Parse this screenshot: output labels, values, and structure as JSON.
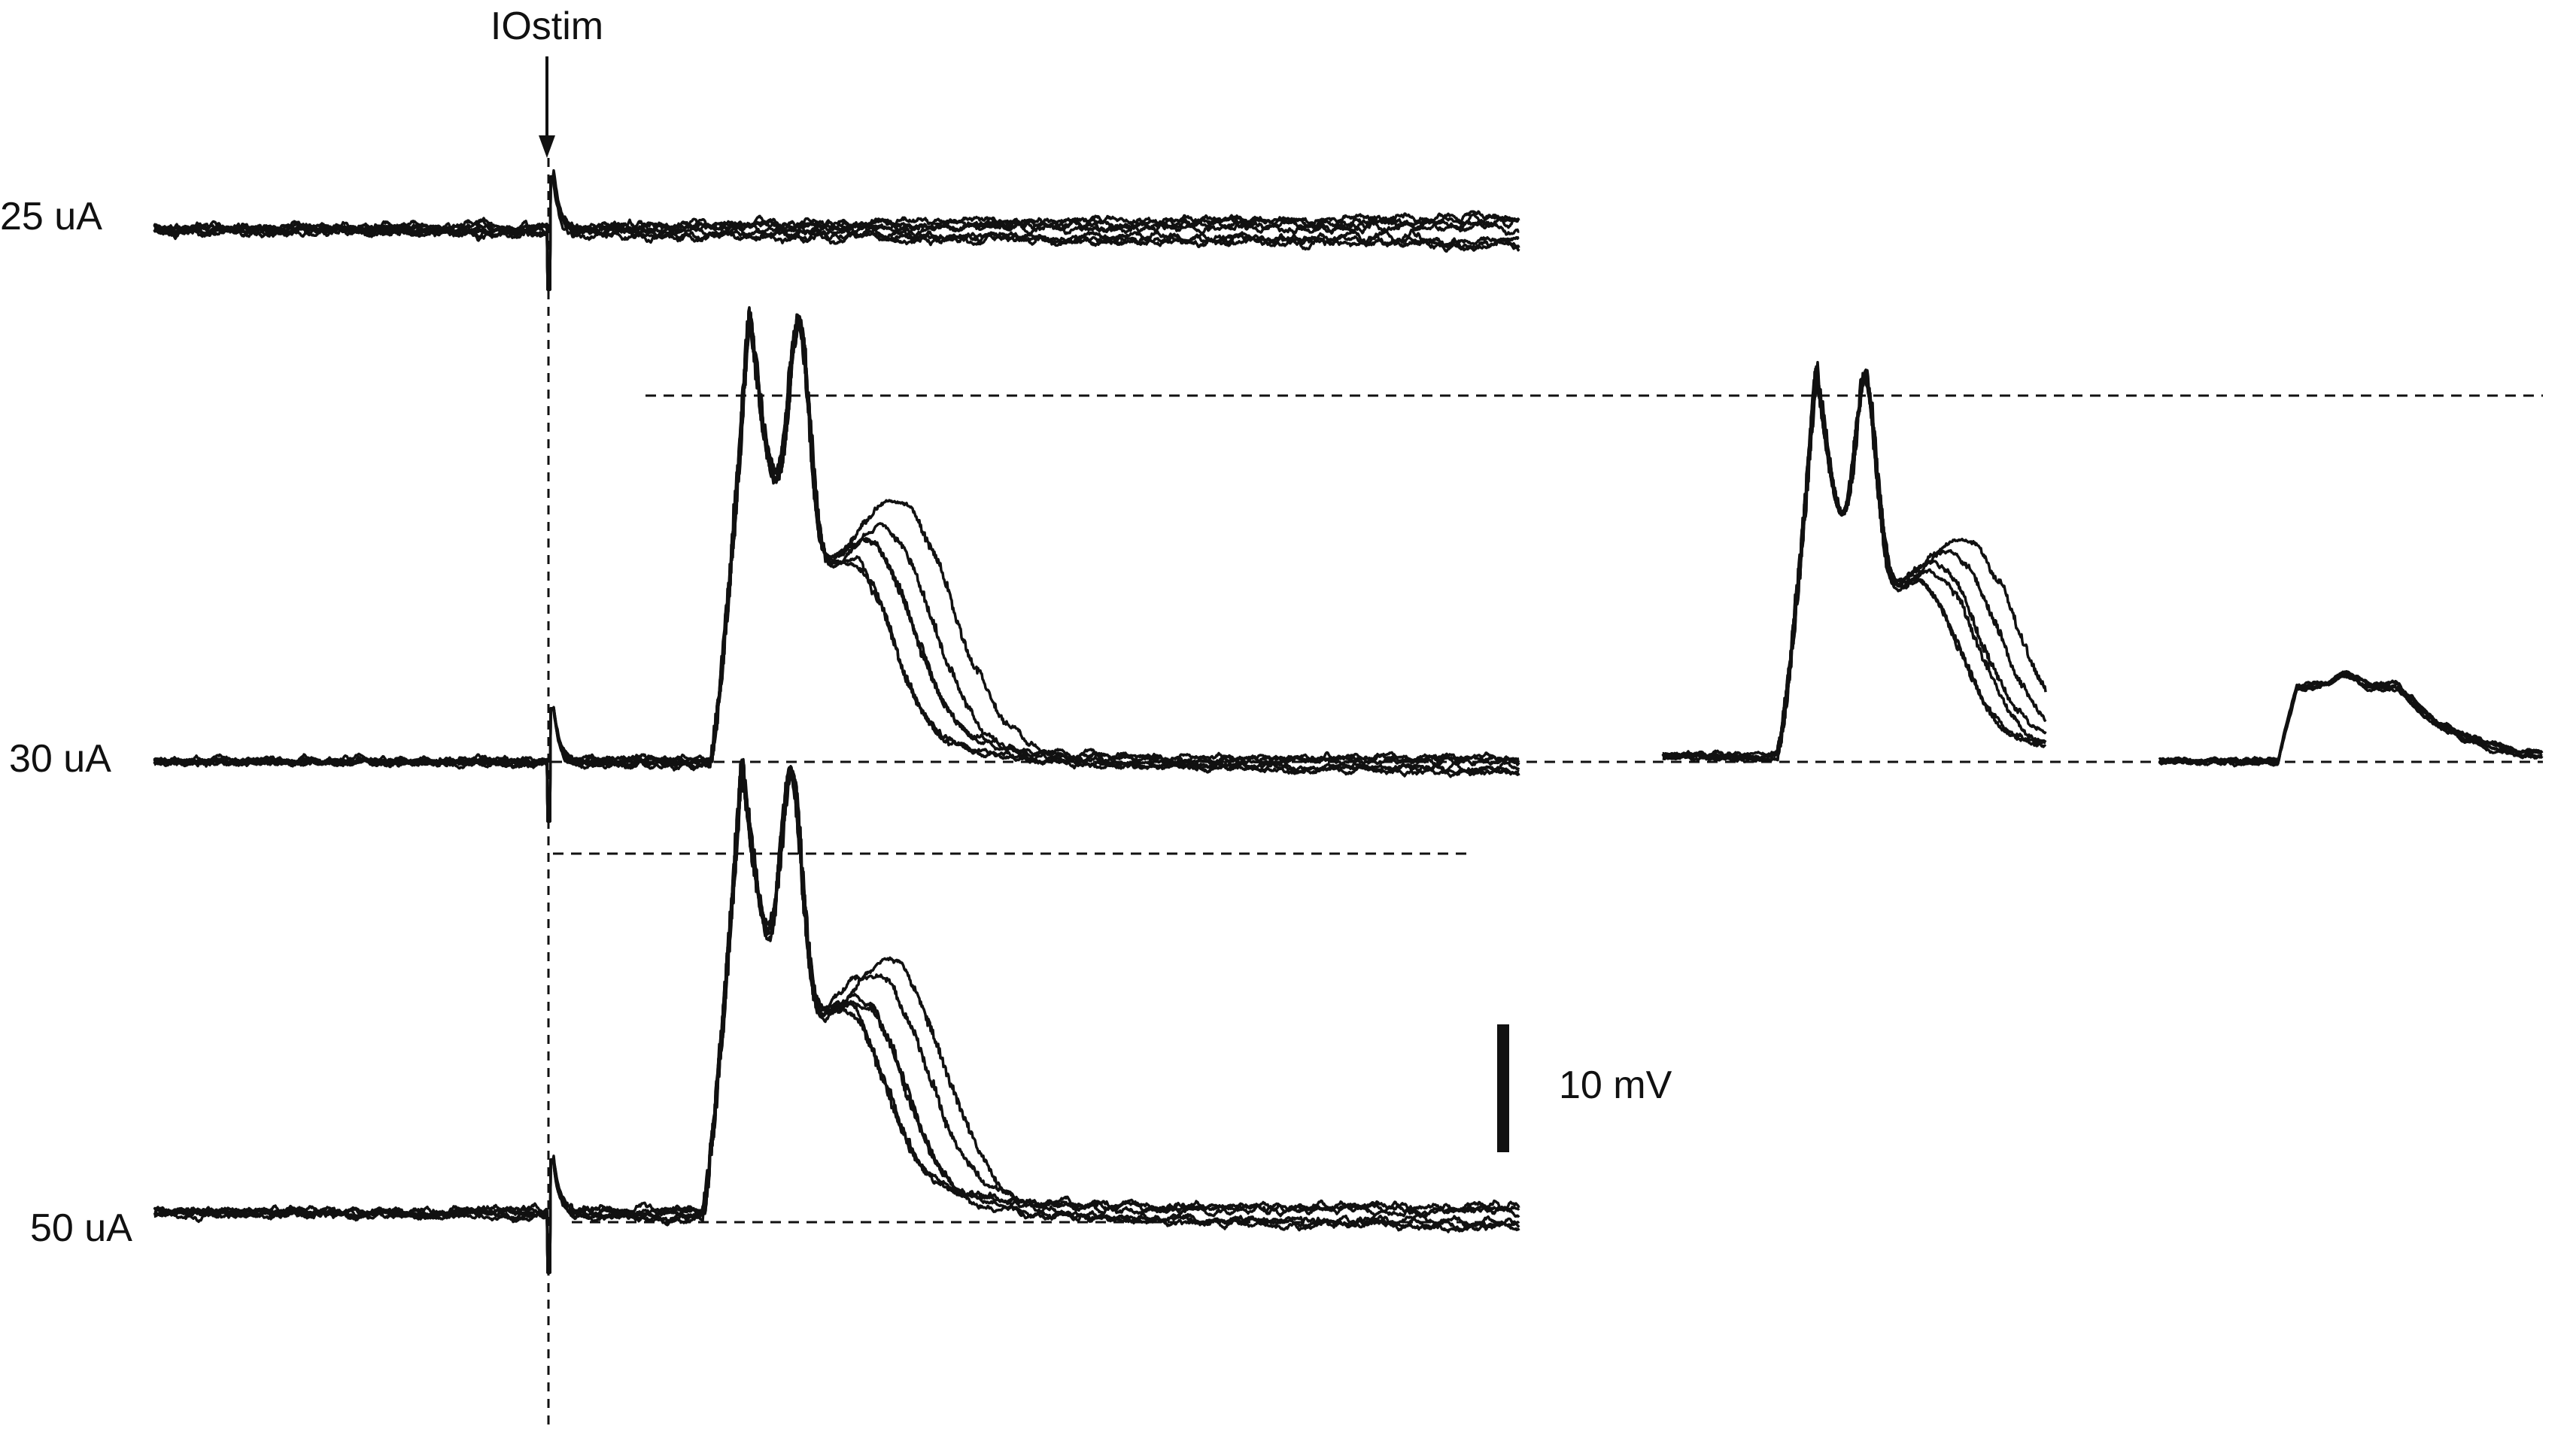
{
  "figure": {
    "stimulus_label": "IOstim",
    "scale_bar_label": "10 mV",
    "ink_color": "#111111",
    "rows": [
      {
        "label": "25 uA",
        "complex_spike": false,
        "extra_sweeps": false
      },
      {
        "label": "30 uA",
        "complex_spike": true,
        "extra_sweeps": true
      },
      {
        "label": "50 uA",
        "complex_spike": true,
        "extra_sweeps": false
      }
    ]
  }
}
